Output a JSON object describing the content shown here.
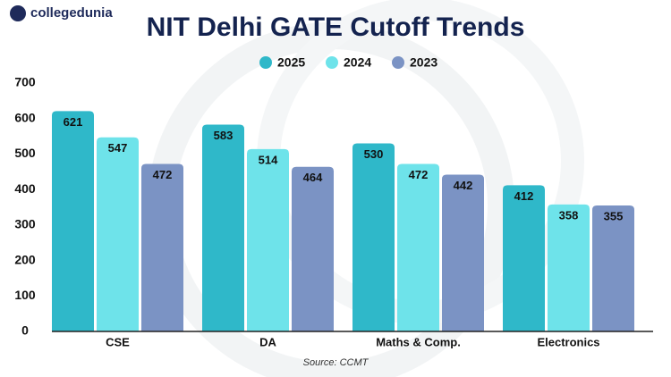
{
  "brand": "collegedunia",
  "chart_data": {
    "type": "bar",
    "title": "NIT Delhi GATE Cutoff Trends",
    "categories": [
      "CSE",
      "DA",
      "Maths & Comp.",
      "Electronics"
    ],
    "series": [
      {
        "name": "2025",
        "color": "#2fb8c9",
        "values": [
          621,
          583,
          530,
          412
        ]
      },
      {
        "name": "2024",
        "color": "#6ee3ea",
        "values": [
          547,
          514,
          472,
          358
        ]
      },
      {
        "name": "2023",
        "color": "#7b93c4",
        "values": [
          472,
          464,
          442,
          355
        ]
      }
    ],
    "ylim": [
      0,
      700
    ],
    "yticks": [
      0,
      100,
      200,
      300,
      400,
      500,
      600,
      700
    ],
    "source": "Source: CCMT"
  }
}
